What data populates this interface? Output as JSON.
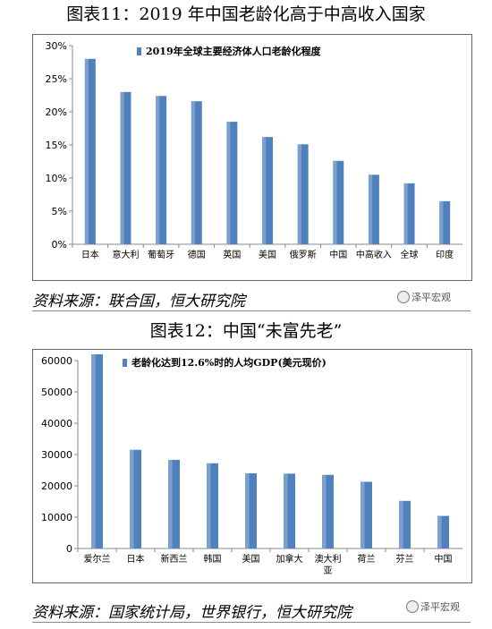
{
  "charts": {
    "chart1_title": "图表11：2019 年中国老龄化高于中高收入国家",
    "chart2_title": "图表12：中国“未富先老”",
    "source1": "资料来源：联合国，恒大研究院",
    "source2": "资料来源：国家统计局，世界银行，恒大研究院",
    "watermark": "泽平宏观",
    "bar_color": "#4f81bd"
  },
  "chart_data": [
    {
      "type": "bar",
      "title": "",
      "legend": "2019年全球主要经济体人口老龄化程度",
      "legend_position": "top",
      "categories": [
        "日本",
        "意大利",
        "葡萄牙",
        "德国",
        "英国",
        "美国",
        "俄罗斯",
        "中国",
        "中高收入",
        "全球",
        "印度"
      ],
      "values": [
        28.0,
        23.0,
        22.4,
        21.6,
        18.5,
        16.2,
        15.1,
        12.6,
        10.5,
        9.2,
        6.5
      ],
      "ylim": [
        0,
        30
      ],
      "yticks": [
        "0%",
        "5%",
        "10%",
        "15%",
        "20%",
        "25%",
        "30%"
      ],
      "xlabel": "",
      "ylabel": "",
      "grid": false
    },
    {
      "type": "bar",
      "title": "",
      "legend": "老龄化达到12.6%时的人均GDP(美元现价)",
      "legend_position": "top",
      "categories": [
        "爱尔兰",
        "日本",
        "新西兰",
        "韩国",
        "美国",
        "加拿大",
        "澳大利亚",
        "荷兰",
        "芬兰",
        "中国"
      ],
      "values": [
        62000,
        31500,
        28300,
        27200,
        24000,
        23900,
        23500,
        21300,
        15200,
        10400
      ],
      "ylim": [
        0,
        60000
      ],
      "yticks": [
        "0",
        "10000",
        "20000",
        "30000",
        "40000",
        "50000",
        "60000"
      ],
      "xlabel": "",
      "ylabel": "",
      "grid": false
    }
  ]
}
